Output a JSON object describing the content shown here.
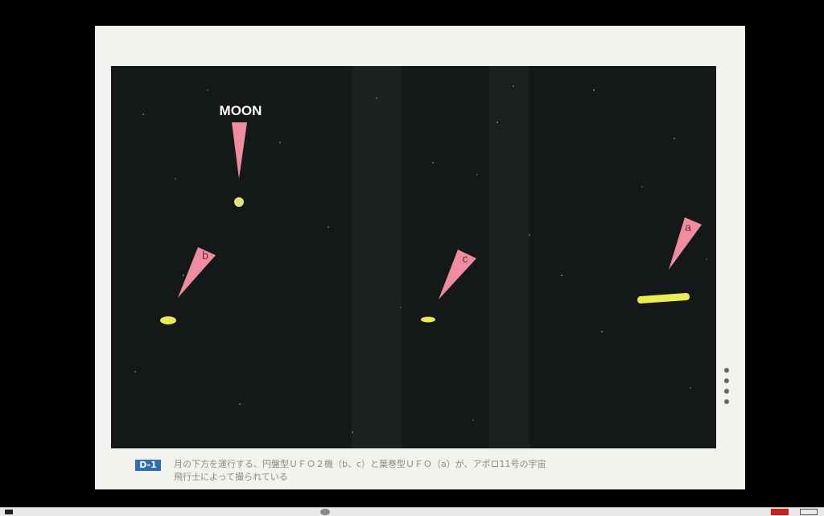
{
  "photo": {
    "label_moon": "MOON",
    "label_a": "a",
    "label_b": "b",
    "label_c": "c"
  },
  "caption": {
    "badge": "D-1",
    "line1": "月の下方を運行する、円盤型ＵＦＯ２機（b、c）と葉巻型ＵＦＯ（a）が、アポロ11号の宇宙",
    "line2": "飛行士によって撮られている"
  },
  "colors": {
    "pointer": "#f08ca0",
    "ufo": "#ecec50",
    "sky": "#151818"
  }
}
